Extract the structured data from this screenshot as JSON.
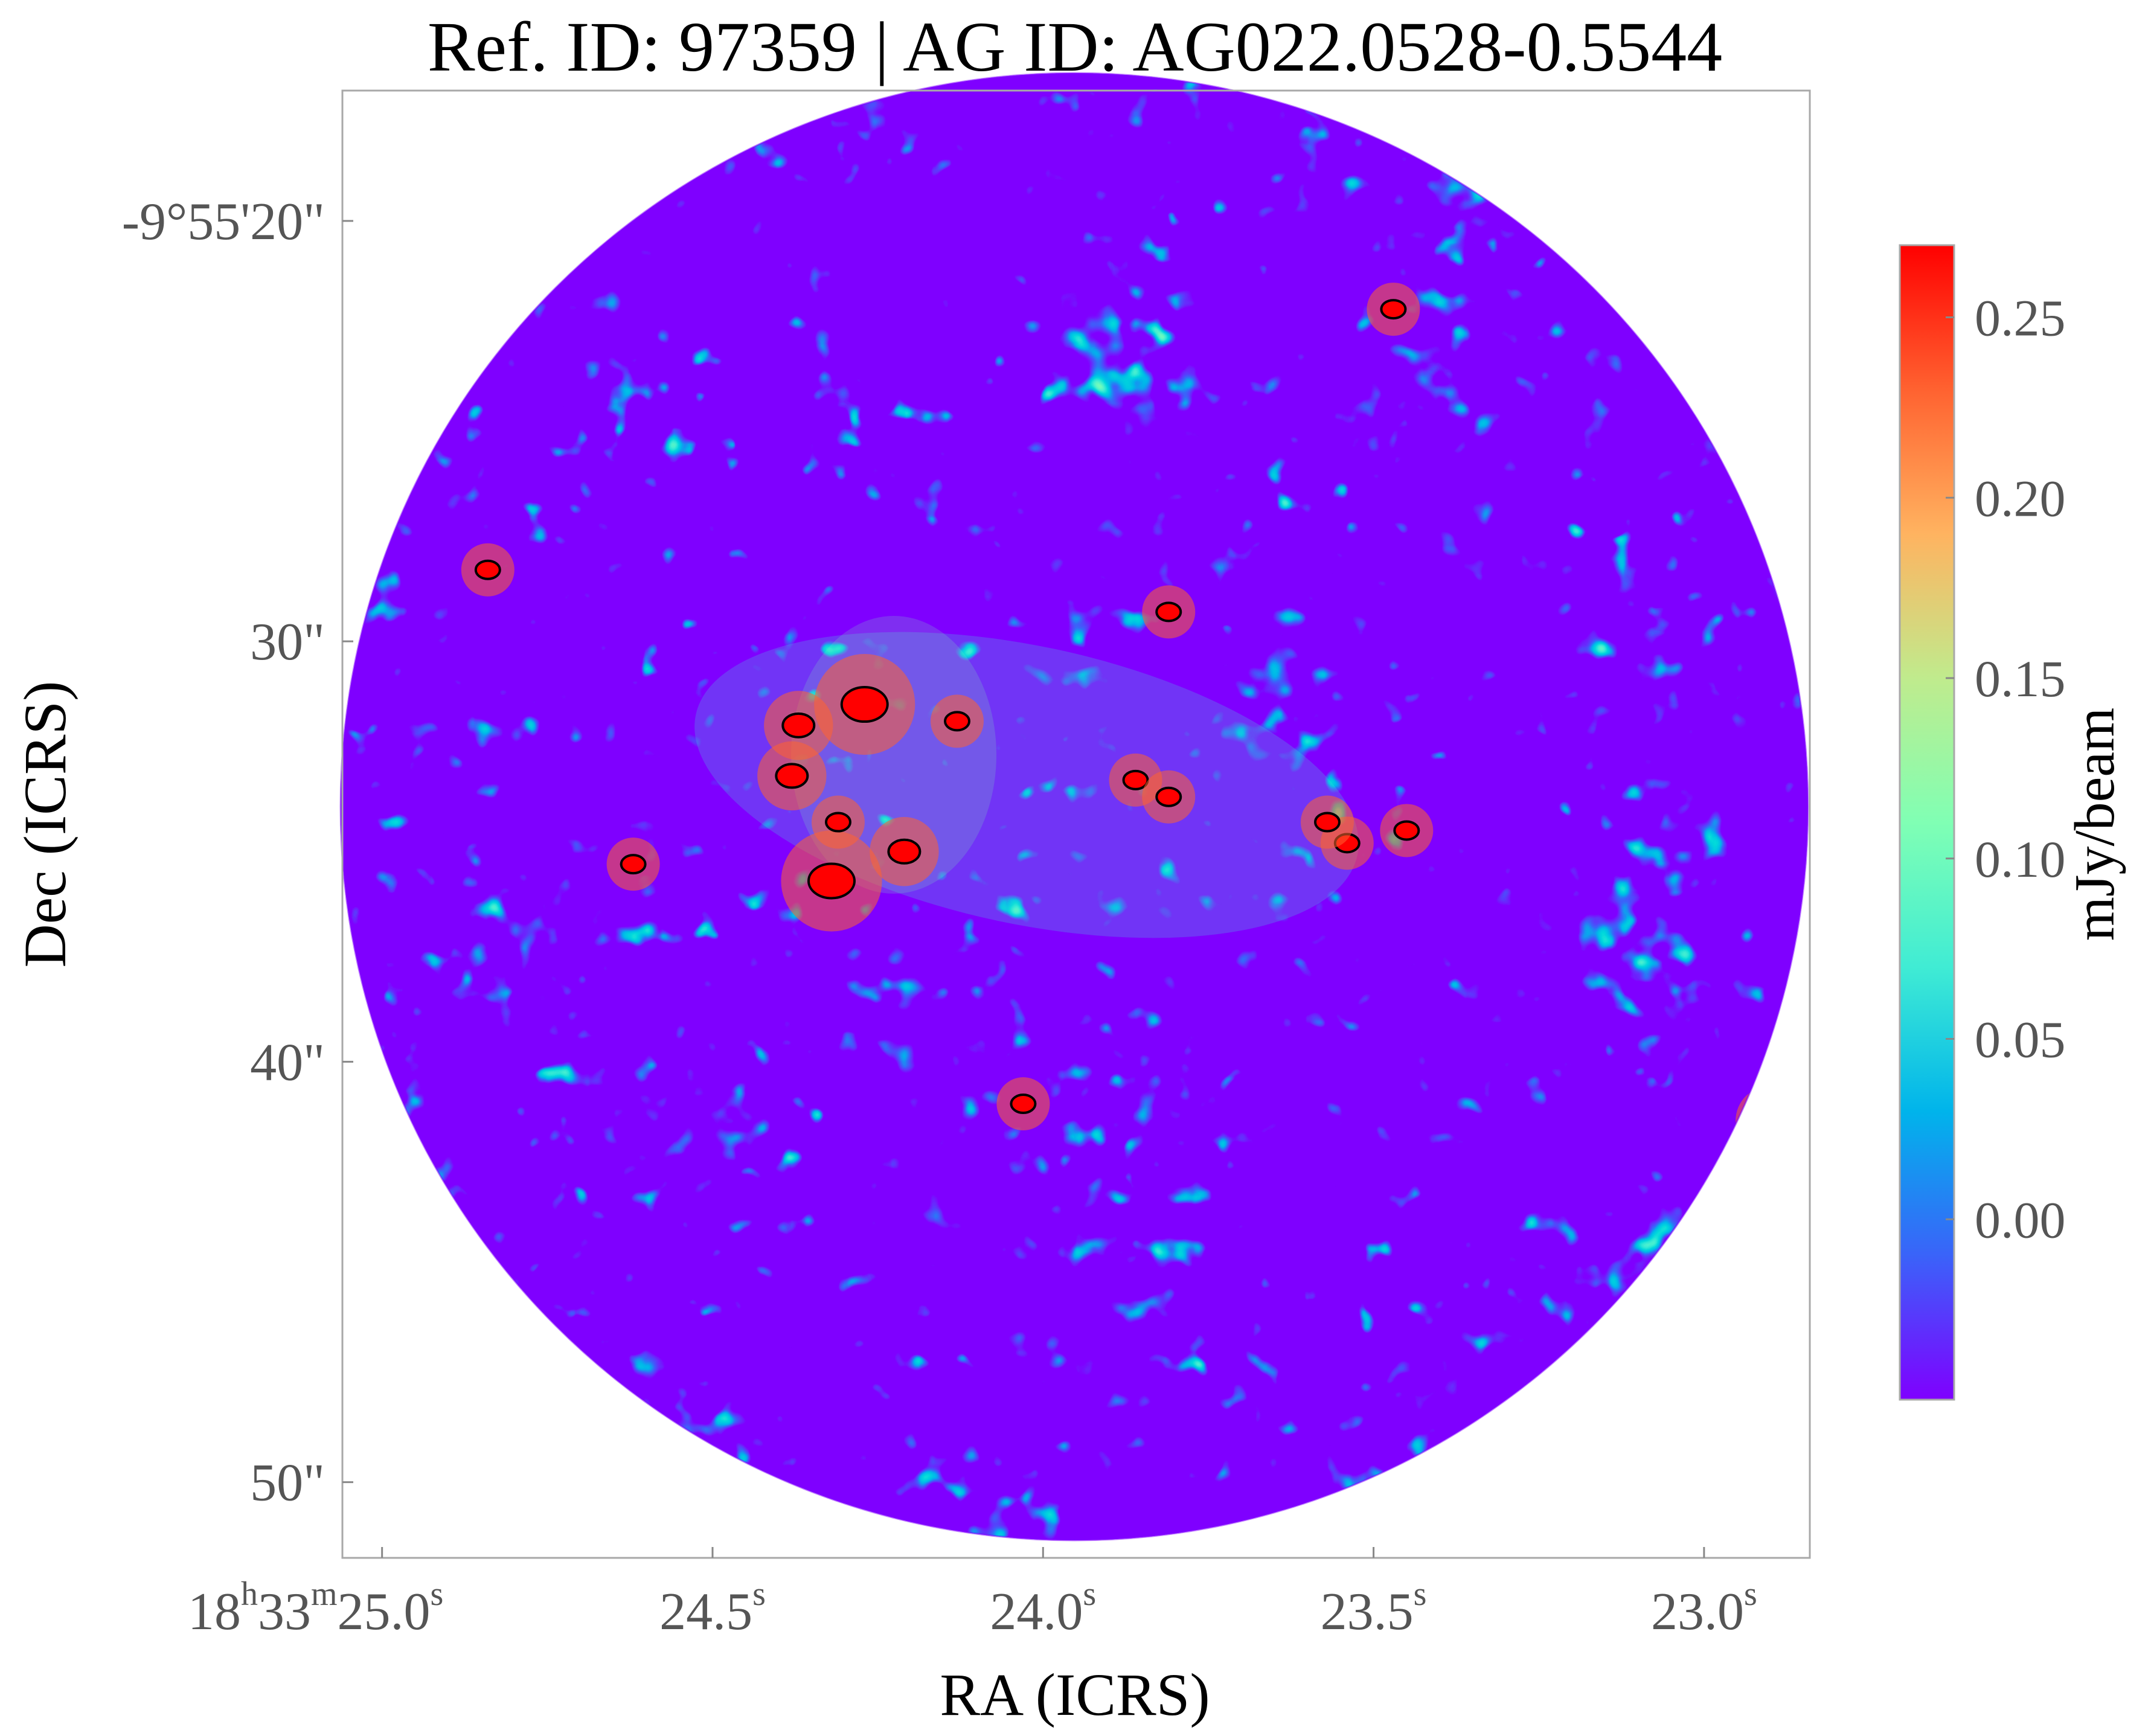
{
  "chart_data": {
    "type": "heatmap",
    "title": "Ref. ID: 97359 | AG ID: AG022.0528-0.5544",
    "xlabel": "RA (ICRS)",
    "ylabel": "Dec (ICRS)",
    "x_ticks": [
      {
        "h": "18",
        "m": "33",
        "s": "25.0",
        "value_s": 25.0
      },
      {
        "s": "24.5",
        "value_s": 24.5
      },
      {
        "s": "24.0",
        "value_s": 24.0
      },
      {
        "s": "23.5",
        "value_s": 23.5
      },
      {
        "s": "23.0",
        "value_s": 23.0
      }
    ],
    "x_range_s": [
      25.06,
      22.84
    ],
    "y_ticks": [
      {
        "label": "-9°55'20\"",
        "value_arcsec": 20
      },
      {
        "label": "30\"",
        "value_arcsec": 30
      },
      {
        "label": "40\"",
        "value_arcsec": 40
      },
      {
        "label": "50\"",
        "value_arcsec": 50
      }
    ],
    "y_range_arcsec": [
      16.9,
      51.8
    ],
    "colorbar": {
      "label": "mJy/beam",
      "ticks": [
        "0.25",
        "0.20",
        "0.15",
        "0.10",
        "0.05",
        "0.00"
      ],
      "tick_values": [
        0.25,
        0.2,
        0.15,
        0.1,
        0.05,
        0.0
      ],
      "range": [
        -0.05,
        0.27
      ],
      "colormap": "rainbow",
      "colors": [
        "#7f00ff",
        "#3a63f9",
        "#00b4eb",
        "#40ecd4",
        "#80ffb4",
        "#c0eb8d",
        "#ffb360",
        "#ff6230",
        "#ff0000"
      ]
    },
    "grid": false,
    "field_of_view": "circular",
    "contour_color": "#000000",
    "bright_sources": [
      {
        "ra_s": 24.27,
        "dec_arcsec": 31.5,
        "peak": 0.27
      },
      {
        "ra_s": 24.32,
        "dec_arcsec": 35.7,
        "peak": 0.27
      },
      {
        "ra_s": 24.37,
        "dec_arcsec": 32.0,
        "peak": 0.23
      },
      {
        "ra_s": 24.38,
        "dec_arcsec": 33.2,
        "peak": 0.23
      },
      {
        "ra_s": 24.13,
        "dec_arcsec": 31.9,
        "peak": 0.2
      },
      {
        "ra_s": 24.31,
        "dec_arcsec": 34.3,
        "peak": 0.2
      },
      {
        "ra_s": 24.21,
        "dec_arcsec": 35.0,
        "peak": 0.21
      },
      {
        "ra_s": 23.86,
        "dec_arcsec": 33.3,
        "peak": 0.2
      },
      {
        "ra_s": 23.81,
        "dec_arcsec": 33.7,
        "peak": 0.2
      },
      {
        "ra_s": 23.54,
        "dec_arcsec": 34.8,
        "peak": 0.2
      },
      {
        "ra_s": 23.57,
        "dec_arcsec": 34.3,
        "peak": 0.19
      },
      {
        "ra_s": 24.62,
        "dec_arcsec": 35.3,
        "peak": 0.19
      },
      {
        "ra_s": 24.03,
        "dec_arcsec": 41.0,
        "peak": 0.19
      },
      {
        "ra_s": 23.81,
        "dec_arcsec": 29.3,
        "peak": 0.19
      },
      {
        "ra_s": 23.45,
        "dec_arcsec": 34.5,
        "peak": 0.18
      },
      {
        "ra_s": 22.9,
        "dec_arcsec": 41.4,
        "peak": 0.22
      },
      {
        "ra_s": 23.47,
        "dec_arcsec": 22.1,
        "peak": 0.19
      },
      {
        "ra_s": 24.84,
        "dec_arcsec": 28.3,
        "peak": 0.18
      }
    ]
  }
}
